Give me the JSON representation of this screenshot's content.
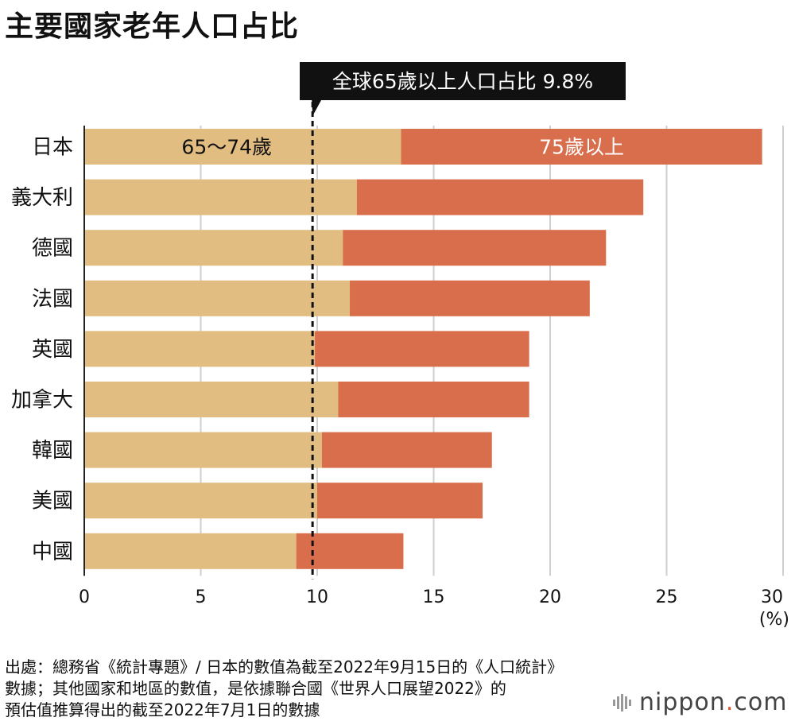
{
  "title": "主要國家老年人口占比",
  "colors": {
    "young": "#e2bd81",
    "old": "#d86e4b",
    "grid": "#cfcfcf",
    "callout_bg": "#111111",
    "callout_text": "#ffffff"
  },
  "chart_data": {
    "type": "bar",
    "orientation": "horizontal",
    "stacked": true,
    "categories": [
      "日本",
      "義大利",
      "德國",
      "法國",
      "英國",
      "加拿大",
      "韓國",
      "美國",
      "中國"
    ],
    "series": [
      {
        "name": "65～74歲",
        "values": [
          13.6,
          11.7,
          11.1,
          11.4,
          9.9,
          10.9,
          10.2,
          10.0,
          9.1
        ]
      },
      {
        "name": "75歲以上",
        "values": [
          15.5,
          12.3,
          11.3,
          10.3,
          9.2,
          8.2,
          7.3,
          7.1,
          4.6
        ]
      }
    ],
    "xlim": [
      0,
      30
    ],
    "xticks": [
      0,
      5,
      10,
      15,
      20,
      25,
      30
    ],
    "xunit": "(%)",
    "grid": true,
    "reference_line": {
      "value": 9.8,
      "label": "全球65歲以上人口占比 9.8%"
    }
  },
  "source_lines": [
    "出處：總務省《統計專題》/ 日本的數值為截至2022年9月15日的《人口統計》",
    "數據；其他國家和地區的數值，是依據聯合國《世界人口展望2022》的",
    "預估值推算得出的截至2022年7月1日的數據"
  ],
  "brand": {
    "name": "nippon",
    "dot": ".",
    "suffix": "com",
    "icon": "nippon-logo-icon"
  }
}
